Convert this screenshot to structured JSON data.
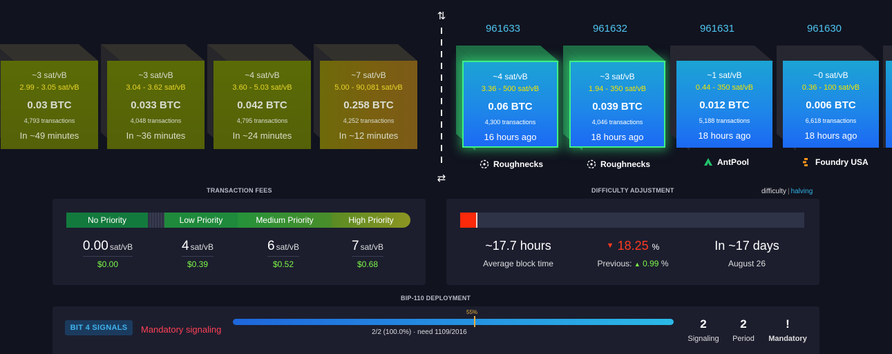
{
  "mempool_blocks": [
    {
      "fee": "~3 sat/vB",
      "range": "2.99 - 3.05 sat/vB",
      "btc": "0.03 BTC",
      "txs": "4,793 transactions",
      "eta": "In ~49 minutes"
    },
    {
      "fee": "~3 sat/vB",
      "range": "3.04 - 3.62 sat/vB",
      "btc": "0.033 BTC",
      "txs": "4,048 transactions",
      "eta": "In ~36 minutes"
    },
    {
      "fee": "~4 sat/vB",
      "range": "3.60 - 5.03 sat/vB",
      "btc": "0.042 BTC",
      "txs": "4,795 transactions",
      "eta": "In ~24 minutes"
    },
    {
      "fee": "~7 sat/vB",
      "range": "5.00 - 90,081 sat/vB",
      "btc": "0.258 BTC",
      "txs": "4,252 transactions",
      "eta": "In ~12 minutes"
    }
  ],
  "mined_blocks": [
    {
      "height": "961633",
      "fee": "~4 sat/vB",
      "range": "3.36 - 500 sat/vB",
      "btc": "0.06 BTC",
      "txs": "4,300 transactions",
      "age": "16 hours ago",
      "pool": "Roughnecks",
      "pool_icon": "roughnecks-icon"
    },
    {
      "height": "961632",
      "fee": "~3 sat/vB",
      "range": "1.94 - 350 sat/vB",
      "btc": "0.039 BTC",
      "txs": "4,046 transactions",
      "age": "18 hours ago",
      "pool": "Roughnecks",
      "pool_icon": "roughnecks-icon"
    },
    {
      "height": "961631",
      "fee": "~1 sat/vB",
      "range": "0.44 - 350 sat/vB",
      "btc": "0.012 BTC",
      "txs": "5,188 transactions",
      "age": "18 hours ago",
      "pool": "AntPool",
      "pool_icon": "antpool-icon"
    },
    {
      "height": "961630",
      "fee": "~0 sat/vB",
      "range": "0.36 - 100 sat/vB",
      "btc": "0.006 BTC",
      "txs": "6,618 transactions",
      "age": "18 hours ago",
      "pool": "Foundry USA",
      "pool_icon": "foundry-icon"
    }
  ],
  "divider": {
    "top_icon": "⇅",
    "bottom_icon": "⇄"
  },
  "fees": {
    "title": "TRANSACTION FEES",
    "labels": {
      "none": "No Priority",
      "low": "Low Priority",
      "medium": "Medium Priority",
      "high": "High Priority"
    },
    "values": [
      {
        "value": "0.00",
        "unit": "sat/vB",
        "usd": "$0.00"
      },
      {
        "value": "4",
        "unit": "sat/vB",
        "usd": "$0.39"
      },
      {
        "value": "6",
        "unit": "sat/vB",
        "usd": "$0.52"
      },
      {
        "value": "7",
        "unit": "sat/vB",
        "usd": "$0.68"
      }
    ]
  },
  "difficulty": {
    "title": "DIFFICULTY ADJUSTMENT",
    "link_difficulty": "difficulty",
    "link_separator": "|",
    "link_halving": "halving",
    "progress_fraction": 0.05,
    "avg_block_time": "~17.7 hours",
    "avg_block_time_label": "Average block time",
    "change": "18.25",
    "change_unit": "%",
    "change_arrow": "▼",
    "previous_label": "Previous:",
    "previous_arrow": "▲",
    "previous_value": "0.99",
    "previous_unit": "%",
    "eta": "In ~17 days",
    "eta_date": "August 26",
    "colors": {
      "decrease": "#ff3a20",
      "increase": "#7df548",
      "progress": "#fa2a0a"
    }
  },
  "bip": {
    "title": "BIP-110 DEPLOYMENT",
    "badge": "BIT 4 SIGNALS",
    "status": "Mandatory signaling",
    "threshold_label": "55%",
    "progress_text": "2/2 (100.0%) · need 1109/2016",
    "stats": [
      {
        "value": "2",
        "label": "Signaling"
      },
      {
        "value": "2",
        "label": "Period"
      },
      {
        "value": "!",
        "label": "Mandatory"
      }
    ]
  }
}
